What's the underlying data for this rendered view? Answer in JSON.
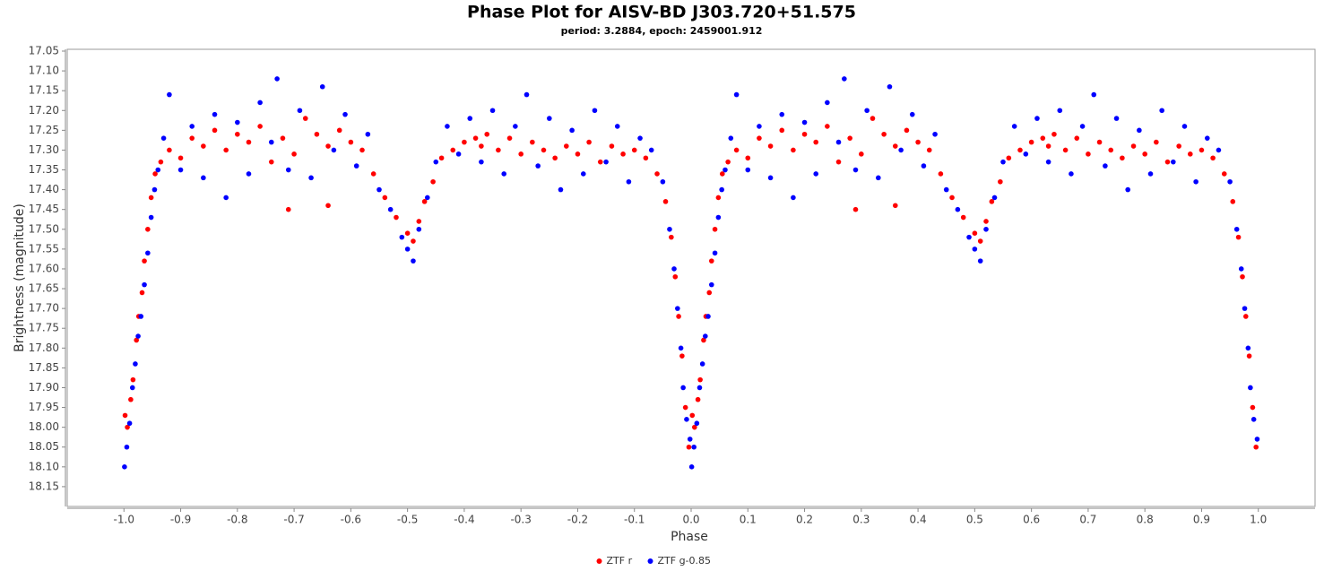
{
  "chart_data": {
    "type": "scatter",
    "title": "Phase Plot for AISV-BD J303.720+51.575",
    "subtitle": "period: 3.2884, epoch: 2459001.912",
    "x_label": "Phase",
    "y_label": "Brightness (magnitude)",
    "xlim": [
      -1.1,
      1.1
    ],
    "ylim": [
      17.05,
      18.2
    ],
    "y_inverted": true,
    "xticks": [
      {
        "value": -1,
        "label": "-1.0"
      },
      -0.9,
      -0.8,
      -0.7,
      -0.6,
      -0.5,
      -0.4,
      -0.3,
      -0.2,
      -0.1,
      {
        "value": 0,
        "label": "0.0"
      },
      0.1,
      0.2,
      0.3,
      0.4,
      0.5,
      0.6,
      0.7,
      0.8,
      0.9,
      {
        "value": 1,
        "label": "1.0"
      }
    ],
    "yticks": [
      17.05,
      {
        "value": 17.1,
        "label": "17.10"
      },
      17.15,
      {
        "value": 17.2,
        "label": "17.20"
      },
      17.25,
      {
        "value": 17.3,
        "label": "17.30"
      },
      17.35,
      {
        "value": 17.4,
        "label": "17.40"
      },
      17.45,
      {
        "value": 17.5,
        "label": "17.50"
      },
      17.55,
      {
        "value": 17.6,
        "label": "17.60"
      },
      17.65,
      {
        "value": 17.7,
        "label": "17.70"
      },
      17.75,
      {
        "value": 17.8,
        "label": "17.80"
      },
      17.85,
      {
        "value": 17.9,
        "label": "17.90"
      },
      17.95,
      {
        "value": 18,
        "label": "18.00"
      },
      18.05,
      {
        "value": 18.1,
        "label": "18.10"
      },
      18.15
    ],
    "grid": false,
    "legend": "bottom",
    "series": [
      {
        "name": "ZTF r",
        "color": "#ff0000",
        "x": [
          -0.998,
          -0.994,
          -0.988,
          -0.984,
          -0.978,
          -0.974,
          -0.968,
          -0.964,
          -0.958,
          -0.952,
          -0.945,
          -0.935,
          -0.92,
          -0.9,
          -0.88,
          -0.86,
          -0.84,
          -0.82,
          -0.8,
          -0.78,
          -0.76,
          -0.74,
          -0.72,
          -0.71,
          -0.7,
          -0.68,
          -0.66,
          -0.64,
          -0.64,
          -0.62,
          -0.6,
          -0.58,
          -0.56,
          -0.54,
          -0.52,
          -0.5,
          -0.49,
          -0.48,
          -0.47,
          -0.455,
          -0.44,
          -0.42,
          -0.4,
          -0.38,
          -0.37,
          -0.36,
          -0.34,
          -0.32,
          -0.3,
          -0.28,
          -0.26,
          -0.24,
          -0.22,
          -0.2,
          -0.18,
          -0.16,
          -0.14,
          -0.12,
          -0.1,
          -0.08,
          -0.06,
          -0.045,
          -0.035,
          -0.028,
          -0.022,
          -0.016,
          -0.01,
          -0.004,
          0.002,
          0.006,
          0.012,
          0.016,
          0.022,
          0.026,
          0.032,
          0.036,
          0.042,
          0.048,
          0.055,
          0.065,
          0.08,
          0.1,
          0.12,
          0.14,
          0.16,
          0.18,
          0.2,
          0.22,
          0.24,
          0.26,
          0.28,
          0.29,
          0.3,
          0.32,
          0.34,
          0.36,
          0.36,
          0.38,
          0.4,
          0.42,
          0.44,
          0.46,
          0.48,
          0.5,
          0.51,
          0.52,
          0.53,
          0.545,
          0.56,
          0.58,
          0.6,
          0.62,
          0.63,
          0.64,
          0.66,
          0.68,
          0.7,
          0.72,
          0.74,
          0.76,
          0.78,
          0.8,
          0.82,
          0.84,
          0.86,
          0.88,
          0.9,
          0.92,
          0.94,
          0.955,
          0.965,
          0.972,
          0.978,
          0.984,
          0.99,
          0.996
        ],
        "values": [
          17.97,
          18.0,
          17.93,
          17.88,
          17.78,
          17.72,
          17.66,
          17.58,
          17.5,
          17.42,
          17.36,
          17.33,
          17.3,
          17.32,
          17.27,
          17.29,
          17.25,
          17.3,
          17.26,
          17.28,
          17.24,
          17.33,
          17.27,
          17.45,
          17.31,
          17.22,
          17.26,
          17.29,
          17.44,
          17.25,
          17.28,
          17.3,
          17.36,
          17.42,
          17.47,
          17.51,
          17.53,
          17.48,
          17.43,
          17.38,
          17.32,
          17.3,
          17.28,
          17.27,
          17.29,
          17.26,
          17.3,
          17.27,
          17.31,
          17.28,
          17.3,
          17.32,
          17.29,
          17.31,
          17.28,
          17.33,
          17.29,
          17.31,
          17.3,
          17.32,
          17.36,
          17.43,
          17.52,
          17.62,
          17.72,
          17.82,
          17.95,
          18.05,
          17.97,
          18.0,
          17.93,
          17.88,
          17.78,
          17.72,
          17.66,
          17.58,
          17.5,
          17.42,
          17.36,
          17.33,
          17.3,
          17.32,
          17.27,
          17.29,
          17.25,
          17.3,
          17.26,
          17.28,
          17.24,
          17.33,
          17.27,
          17.45,
          17.31,
          17.22,
          17.26,
          17.29,
          17.44,
          17.25,
          17.28,
          17.3,
          17.36,
          17.42,
          17.47,
          17.51,
          17.53,
          17.48,
          17.43,
          17.38,
          17.32,
          17.3,
          17.28,
          17.27,
          17.29,
          17.26,
          17.3,
          17.27,
          17.31,
          17.28,
          17.3,
          17.32,
          17.29,
          17.31,
          17.28,
          17.33,
          17.29,
          17.31,
          17.3,
          17.32,
          17.36,
          17.43,
          17.52,
          17.62,
          17.72,
          17.82,
          17.95,
          18.05
        ]
      },
      {
        "name": "ZTF g-0.85",
        "color": "#0000ff",
        "x": [
          -0.999,
          -0.995,
          -0.99,
          -0.985,
          -0.98,
          -0.975,
          -0.97,
          -0.964,
          -0.958,
          -0.952,
          -0.946,
          -0.94,
          -0.93,
          -0.92,
          -0.9,
          -0.88,
          -0.86,
          -0.84,
          -0.82,
          -0.8,
          -0.78,
          -0.76,
          -0.74,
          -0.73,
          -0.71,
          -0.69,
          -0.67,
          -0.65,
          -0.63,
          -0.61,
          -0.59,
          -0.57,
          -0.55,
          -0.53,
          -0.51,
          -0.5,
          -0.49,
          -0.48,
          -0.465,
          -0.45,
          -0.43,
          -0.41,
          -0.39,
          -0.37,
          -0.35,
          -0.33,
          -0.31,
          -0.29,
          -0.27,
          -0.25,
          -0.23,
          -0.21,
          -0.19,
          -0.17,
          -0.15,
          -0.13,
          -0.11,
          -0.09,
          -0.07,
          -0.05,
          -0.038,
          -0.03,
          -0.024,
          -0.018,
          -0.014,
          -0.008,
          -0.002,
          0.001,
          0.005,
          0.01,
          0.015,
          0.02,
          0.025,
          0.03,
          0.036,
          0.042,
          0.048,
          0.054,
          0.06,
          0.07,
          0.08,
          0.1,
          0.12,
          0.14,
          0.16,
          0.18,
          0.2,
          0.22,
          0.24,
          0.26,
          0.27,
          0.29,
          0.31,
          0.33,
          0.35,
          0.37,
          0.39,
          0.41,
          0.43,
          0.45,
          0.47,
          0.49,
          0.5,
          0.51,
          0.52,
          0.535,
          0.55,
          0.57,
          0.59,
          0.61,
          0.63,
          0.65,
          0.67,
          0.69,
          0.71,
          0.73,
          0.75,
          0.77,
          0.79,
          0.81,
          0.83,
          0.85,
          0.87,
          0.89,
          0.91,
          0.93,
          0.95,
          0.962,
          0.97,
          0.976,
          0.982,
          0.986,
          0.992,
          0.998
        ],
        "values": [
          18.1,
          18.05,
          17.99,
          17.9,
          17.84,
          17.77,
          17.72,
          17.64,
          17.56,
          17.47,
          17.4,
          17.35,
          17.27,
          17.16,
          17.35,
          17.24,
          17.37,
          17.21,
          17.42,
          17.23,
          17.36,
          17.18,
          17.28,
          17.12,
          17.35,
          17.2,
          17.37,
          17.14,
          17.3,
          17.21,
          17.34,
          17.26,
          17.4,
          17.45,
          17.52,
          17.55,
          17.58,
          17.5,
          17.42,
          17.33,
          17.24,
          17.31,
          17.22,
          17.33,
          17.2,
          17.36,
          17.24,
          17.16,
          17.34,
          17.22,
          17.4,
          17.25,
          17.36,
          17.2,
          17.33,
          17.24,
          17.38,
          17.27,
          17.3,
          17.38,
          17.5,
          17.6,
          17.7,
          17.8,
          17.9,
          17.98,
          18.03,
          18.1,
          18.05,
          17.99,
          17.9,
          17.84,
          17.77,
          17.72,
          17.64,
          17.56,
          17.47,
          17.4,
          17.35,
          17.27,
          17.16,
          17.35,
          17.24,
          17.37,
          17.21,
          17.42,
          17.23,
          17.36,
          17.18,
          17.28,
          17.12,
          17.35,
          17.2,
          17.37,
          17.14,
          17.3,
          17.21,
          17.34,
          17.26,
          17.4,
          17.45,
          17.52,
          17.55,
          17.58,
          17.5,
          17.42,
          17.33,
          17.24,
          17.31,
          17.22,
          17.33,
          17.2,
          17.36,
          17.24,
          17.16,
          17.34,
          17.22,
          17.4,
          17.25,
          17.36,
          17.2,
          17.33,
          17.24,
          17.38,
          17.27,
          17.3,
          17.38,
          17.5,
          17.6,
          17.7,
          17.8,
          17.9,
          17.98,
          18.03
        ]
      }
    ]
  }
}
